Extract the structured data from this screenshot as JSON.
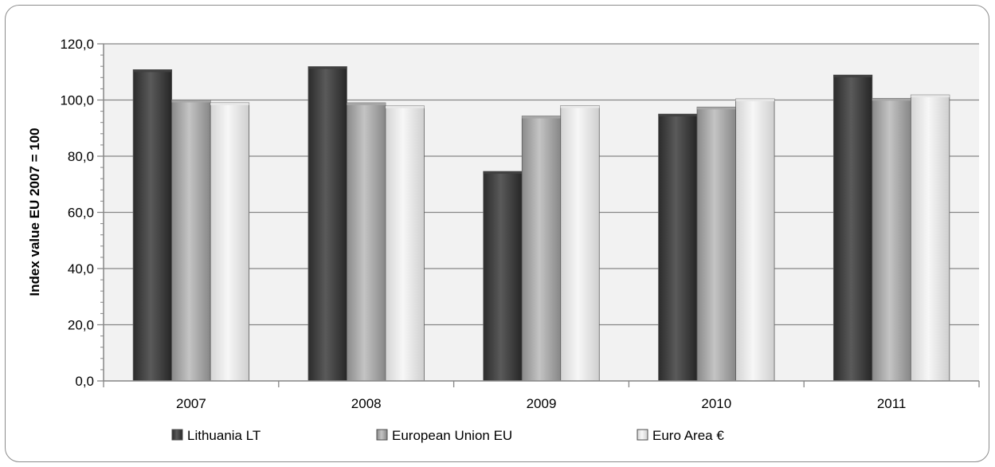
{
  "chart_data": {
    "type": "bar",
    "categories": [
      "2007",
      "2008",
      "2009",
      "2010",
      "2011"
    ],
    "series": [
      {
        "name": "Lithuania LT",
        "values": [
          110.8,
          111.9,
          74.6,
          95.0,
          108.9
        ],
        "color": "#404040"
      },
      {
        "name": "European Union EU",
        "values": [
          100.0,
          99.0,
          94.3,
          97.5,
          100.6
        ],
        "color": "#a6a6a6"
      },
      {
        "name": "Euro Area €",
        "values": [
          99.0,
          97.9,
          98.0,
          100.4,
          101.8
        ],
        "color": "#e8e8e8"
      }
    ],
    "ylabel": "Index value EU 2007 = 100",
    "ylim": [
      0,
      120
    ],
    "yticks": [
      "0,0",
      "20,0",
      "40,0",
      "60,0",
      "80,0",
      "100,0",
      "120,0"
    ],
    "grid": true,
    "legend_position": "bottom"
  }
}
